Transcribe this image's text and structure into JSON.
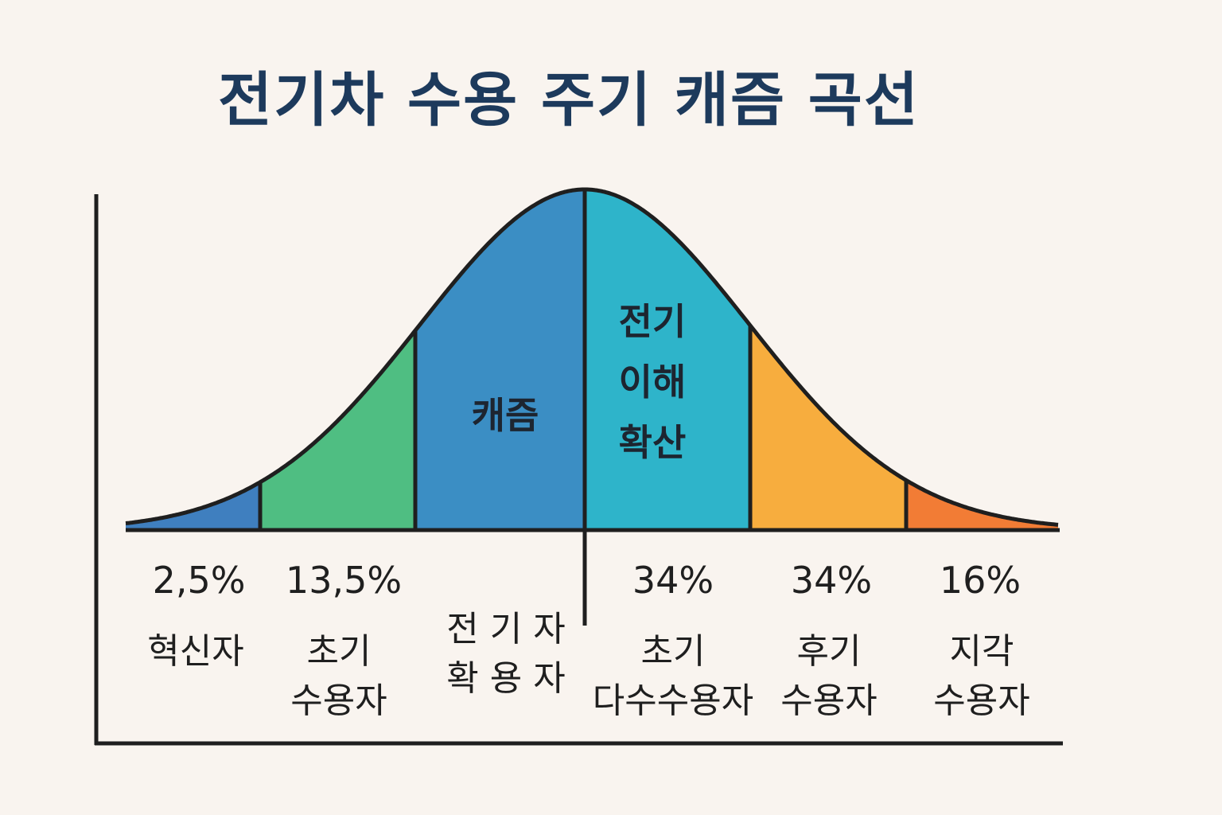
{
  "title": "전기차 수용 주기 캐즘 곡선",
  "colors": {
    "innovators": "#3f7fbf",
    "early_adopters": "#4fbe82",
    "chasm": "#3b8ec4",
    "early_majority": "#2eb4ca",
    "late_majority": "#f7ad3e",
    "laggards": "#f27c35",
    "outline": "#1f1f1f",
    "title": "#1d3a5c"
  },
  "inner_labels": {
    "chasm": "캐즘",
    "ev_understanding": [
      "전기",
      "이해",
      "확산"
    ]
  },
  "segments": [
    {
      "pct": "2,5%",
      "label": [
        "혁신자"
      ]
    },
    {
      "pct": "13,5%",
      "label": [
        "초기",
        "수용자"
      ]
    },
    {
      "pct": "",
      "label": [
        "전 기 자",
        "확 용 자"
      ]
    },
    {
      "pct": "34%",
      "label": [
        "초기",
        "다수수용자"
      ]
    },
    {
      "pct": "34%",
      "label": [
        "후기",
        "수용자"
      ]
    },
    {
      "pct": "16%",
      "label": [
        "지각",
        "수용자"
      ]
    }
  ]
}
